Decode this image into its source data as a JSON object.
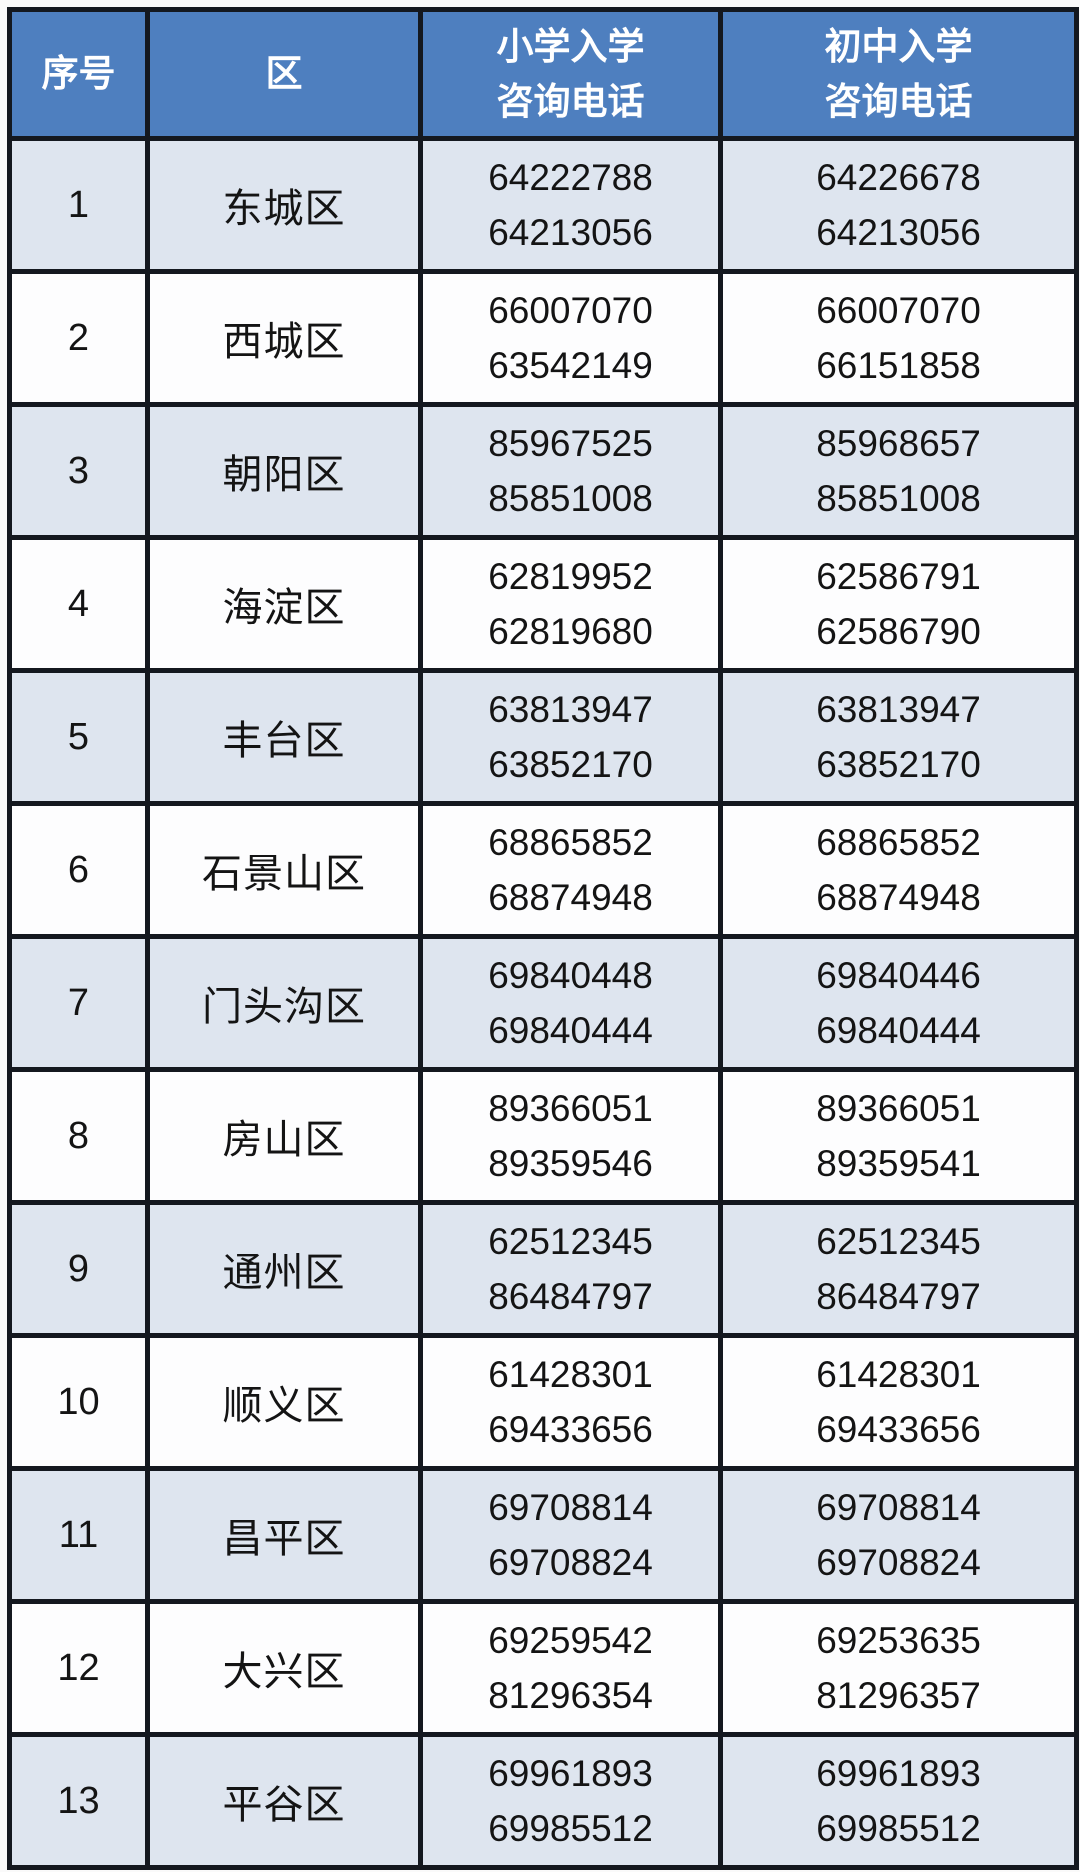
{
  "header": {
    "index": "序号",
    "district": "区",
    "primary": [
      "小学入学",
      "咨询电话"
    ],
    "middle": [
      "初中入学",
      "咨询电话"
    ]
  },
  "colors": {
    "header_bg": "#4e7fbf",
    "header_text": "#ffffff",
    "alt_row_bg": "#dee5ef",
    "plain_row_bg": "#fdfdfe",
    "border": "#14181f"
  },
  "rows": [
    {
      "no": "1",
      "district": "东城区",
      "primary": [
        "64222788",
        "64213056"
      ],
      "middle": [
        "64226678",
        "64213056"
      ]
    },
    {
      "no": "2",
      "district": "西城区",
      "primary": [
        "66007070",
        "63542149"
      ],
      "middle": [
        "66007070",
        "66151858"
      ]
    },
    {
      "no": "3",
      "district": "朝阳区",
      "primary": [
        "85967525",
        "85851008"
      ],
      "middle": [
        "85968657",
        "85851008"
      ]
    },
    {
      "no": "4",
      "district": "海淀区",
      "primary": [
        "62819952",
        "62819680"
      ],
      "middle": [
        "62586791",
        "62586790"
      ]
    },
    {
      "no": "5",
      "district": "丰台区",
      "primary": [
        "63813947",
        "63852170"
      ],
      "middle": [
        "63813947",
        "63852170"
      ]
    },
    {
      "no": "6",
      "district": "石景山区",
      "primary": [
        "68865852",
        "68874948"
      ],
      "middle": [
        "68865852",
        "68874948"
      ]
    },
    {
      "no": "7",
      "district": "门头沟区",
      "primary": [
        "69840448",
        "69840444"
      ],
      "middle": [
        "69840446",
        "69840444"
      ]
    },
    {
      "no": "8",
      "district": "房山区",
      "primary": [
        "89366051",
        "89359546"
      ],
      "middle": [
        "89366051",
        "89359541"
      ]
    },
    {
      "no": "9",
      "district": "通州区",
      "primary": [
        "62512345",
        "86484797"
      ],
      "middle": [
        "62512345",
        "86484797"
      ]
    },
    {
      "no": "10",
      "district": "顺义区",
      "primary": [
        "61428301",
        "69433656"
      ],
      "middle": [
        "61428301",
        "69433656"
      ]
    },
    {
      "no": "11",
      "district": "昌平区",
      "primary": [
        "69708814",
        "69708824"
      ],
      "middle": [
        "69708814",
        "69708824"
      ]
    },
    {
      "no": "12",
      "district": "大兴区",
      "primary": [
        "69259542",
        "81296354"
      ],
      "middle": [
        "69253635",
        "81296357"
      ]
    },
    {
      "no": "13",
      "district": "平谷区",
      "primary": [
        "69961893",
        "69985512"
      ],
      "middle": [
        "69961893",
        "69985512"
      ]
    }
  ]
}
